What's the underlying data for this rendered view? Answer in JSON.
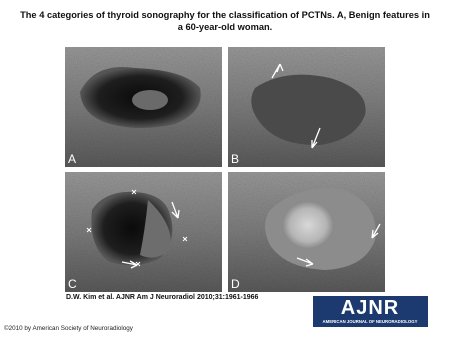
{
  "title": "The 4 categories of thyroid sonography for the classification of PCTNs. A, Benign features in a 60-year-old woman.",
  "panels": [
    {
      "label": "A"
    },
    {
      "label": "B"
    },
    {
      "label": "C"
    },
    {
      "label": "D"
    }
  ],
  "citation": "D.W. Kim et al. AJNR Am J Neuroradiol 2010;31:1961-1966",
  "logo": {
    "name": "AJNR",
    "subtitle": "AMERICAN JOURNAL OF NEURORADIOLOGY"
  },
  "copyright": "©2010 by American Society of Neuroradiology"
}
